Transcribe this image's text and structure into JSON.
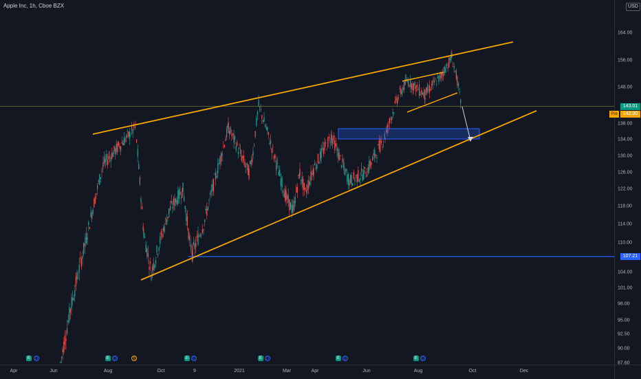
{
  "header": {
    "symbol_title": "Apple Inc, 1h, Cboe BZX",
    "currency": "USD"
  },
  "colors": {
    "background": "#131722",
    "up": "#26a69a",
    "down": "#ef5350",
    "trendline": "#f7a600",
    "level": "#2962ff",
    "last_price": "#089981",
    "premarket": "#f7a600"
  },
  "price_axis": {
    "ticks": [
      "164.00",
      "156.00",
      "148.00",
      "143.01",
      "138.00",
      "134.00",
      "130.00",
      "126.00",
      "122.00",
      "118.00",
      "114.00",
      "110.00",
      "107.21",
      "104.00",
      "101.00",
      "98.00",
      "95.00",
      "92.50",
      "90.00",
      "87.60"
    ],
    "visible_labels": [
      "164.00",
      "156.00",
      "148.00",
      "138.00",
      "134.00",
      "130.00",
      "126.00",
      "122.00",
      "118.00",
      "114.00",
      "110.00",
      "104.00",
      "101.00",
      "98.00",
      "95.00",
      "92.50",
      "90.00",
      "87.60"
    ],
    "last_price": "143.01",
    "premarket_label": "Pre",
    "premarket_price": "142.90",
    "level_price": "107.21"
  },
  "time_axis": {
    "labels": [
      "Apr",
      "Jun",
      "Aug",
      "Oct",
      "9",
      "2021",
      "Mar",
      "Apr",
      "Jun",
      "Aug",
      "Oct",
      "Dec"
    ]
  },
  "events": [
    {
      "type": "E",
      "label": "E"
    },
    {
      "type": "D",
      "label": "D"
    },
    {
      "type": "E",
      "label": "E"
    },
    {
      "type": "D",
      "label": "D"
    },
    {
      "type": "S",
      "label": "S"
    },
    {
      "type": "E",
      "label": "E"
    },
    {
      "type": "D",
      "label": "D"
    },
    {
      "type": "E",
      "label": "E"
    },
    {
      "type": "D",
      "label": "D"
    },
    {
      "type": "E",
      "label": "E"
    },
    {
      "type": "D",
      "label": "D"
    },
    {
      "type": "E",
      "label": "E"
    },
    {
      "type": "D",
      "label": "D"
    }
  ],
  "chart_data": {
    "type": "candlestick",
    "symbol": "Apple Inc",
    "interval": "1h",
    "exchange": "Cboe BZX",
    "x_range": [
      "Apr",
      "Dec"
    ],
    "y_range": [
      87.6,
      164.0
    ],
    "price_path": [
      [
        "Jun",
        87.6
      ],
      [
        "Jul",
        98.0
      ],
      [
        "Aug",
        110.0
      ],
      [
        "Aug",
        128.0
      ],
      [
        "Aug",
        137.0
      ],
      [
        "Sep",
        112.0
      ],
      [
        "Sep",
        104.0
      ],
      [
        "Oct",
        117.0
      ],
      [
        "Oct",
        122.0
      ],
      [
        "Oct",
        110.0
      ],
      [
        "9",
        108.0
      ],
      [
        "9",
        114.0
      ],
      [
        "9",
        124.0
      ],
      [
        "Dec",
        137.0
      ],
      [
        "Dec",
        126.0
      ],
      [
        "2021",
        131.0
      ],
      [
        "2021",
        143.0
      ],
      [
        "Feb",
        134.0
      ],
      [
        "Feb",
        128.0
      ],
      [
        "Mar",
        120.0
      ],
      [
        "Mar",
        117.0
      ],
      [
        "Mar",
        126.0
      ],
      [
        "Apr",
        121.0
      ],
      [
        "Apr",
        127.0
      ],
      [
        "Apr",
        135.0
      ],
      [
        "May",
        127.0
      ],
      [
        "May",
        124.0
      ],
      [
        "Jun",
        126.0
      ],
      [
        "Jun",
        135.0
      ],
      [
        "Jul",
        145.0
      ],
      [
        "Jul",
        150.0
      ],
      [
        "Aug",
        146.0
      ],
      [
        "Aug",
        149.0
      ],
      [
        "Aug",
        151.0
      ],
      [
        "Sep",
        157.0
      ],
      [
        "Sep",
        150.0
      ],
      [
        "Sep",
        143.01
      ]
    ],
    "last_price": 143.01,
    "premarket_price": 142.9,
    "horizontal_level": 107.21,
    "annotations": [
      "rising wedge trendlines",
      "demand zone 134–137",
      "projected move to lower trendline"
    ]
  }
}
